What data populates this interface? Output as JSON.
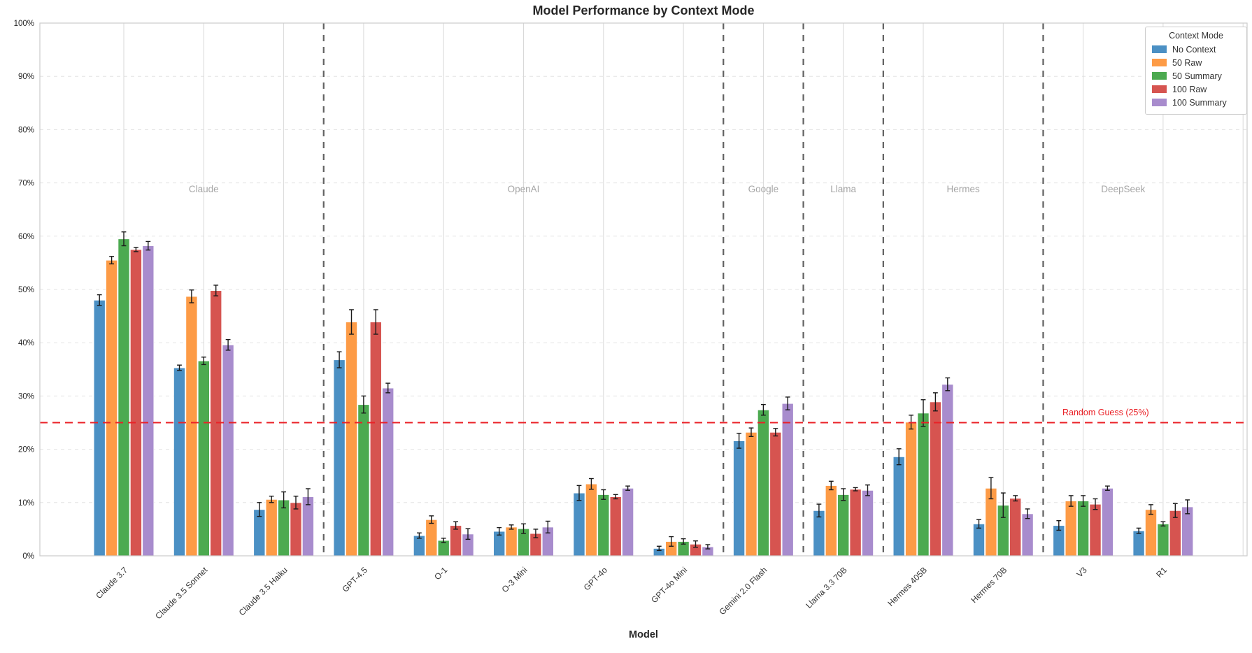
{
  "chart_data": {
    "type": "bar",
    "title": "Model Performance by Context Mode",
    "xlabel": "Model",
    "ylabel": "",
    "ylim": [
      0,
      100
    ],
    "ytick_labels": [
      "0%",
      "10%",
      "20%",
      "30%",
      "40%",
      "50%",
      "60%",
      "70%",
      "80%",
      "90%",
      "100%"
    ],
    "grid": true,
    "legend_title": "Context Mode",
    "legend_position": "top-right",
    "categories": [
      "Claude 3.7",
      "Claude 3.5 Sonnet",
      "Claude 3.5 Haiku",
      "GPT-4.5",
      "O-1",
      "O-3 Mini",
      "GPT-4o",
      "GPT-4o Mini",
      "Gemini 2.0 Flash",
      "Llama 3.3 70B",
      "Hermes 405B",
      "Hermes 70B",
      "V3",
      "R1"
    ],
    "series": [
      {
        "name": "No Context",
        "color": "#4B90C4",
        "values": [
          48.0,
          35.3,
          8.7,
          36.8,
          3.8,
          4.6,
          11.8,
          1.4,
          21.6,
          8.5,
          18.6,
          6.0,
          5.7,
          4.7
        ],
        "errors": [
          1.0,
          0.5,
          1.3,
          1.5,
          0.5,
          0.7,
          1.4,
          0.4,
          1.4,
          1.2,
          1.5,
          0.8,
          0.9,
          0.5
        ]
      },
      {
        "name": "50 Raw",
        "color": "#FD9B46",
        "values": [
          55.5,
          48.7,
          10.6,
          43.9,
          6.8,
          5.4,
          13.5,
          2.7,
          23.2,
          13.2,
          25.1,
          12.7,
          10.3,
          8.7
        ],
        "errors": [
          0.7,
          1.2,
          0.6,
          2.3,
          0.7,
          0.4,
          1.0,
          0.9,
          0.8,
          0.8,
          1.3,
          2.0,
          1.0,
          0.9
        ]
      },
      {
        "name": "50 Summary",
        "color": "#4CAA50",
        "values": [
          59.5,
          36.6,
          10.5,
          28.4,
          2.9,
          5.1,
          11.5,
          2.7,
          27.4,
          11.5,
          26.8,
          9.5,
          10.3,
          6.0
        ],
        "errors": [
          1.3,
          0.7,
          1.5,
          1.6,
          0.4,
          0.9,
          0.9,
          0.5,
          1.0,
          1.1,
          2.5,
          2.3,
          1.0,
          0.4
        ]
      },
      {
        "name": "100 Raw",
        "color": "#D65450",
        "values": [
          57.5,
          49.8,
          10.0,
          43.9,
          5.7,
          4.2,
          11.1,
          2.2,
          23.2,
          12.5,
          28.9,
          10.8,
          9.7,
          8.5
        ],
        "errors": [
          0.4,
          1.0,
          1.2,
          2.3,
          0.7,
          0.8,
          0.4,
          0.6,
          0.7,
          0.3,
          1.7,
          0.5,
          1.0,
          1.3
        ]
      },
      {
        "name": "100 Summary",
        "color": "#A88CCD",
        "values": [
          58.2,
          39.6,
          11.1,
          31.5,
          4.1,
          5.4,
          12.7,
          1.7,
          28.6,
          12.3,
          32.2,
          7.9,
          12.7,
          9.2
        ],
        "errors": [
          0.8,
          1.0,
          1.5,
          0.9,
          1.0,
          1.1,
          0.4,
          0.4,
          1.2,
          1.0,
          1.2,
          0.9,
          0.4,
          1.3
        ]
      }
    ],
    "vendor_groups": [
      {
        "label": "Claude",
        "from": 0,
        "to": 2
      },
      {
        "label": "OpenAI",
        "from": 3,
        "to": 7
      },
      {
        "label": "Google",
        "from": 8,
        "to": 8
      },
      {
        "label": "Llama",
        "from": 9,
        "to": 9
      },
      {
        "label": "Hermes",
        "from": 10,
        "to": 11
      },
      {
        "label": "DeepSeek",
        "from": 12,
        "to": 13
      }
    ],
    "separators_after": [
      2,
      7,
      8,
      9,
      11
    ],
    "reference_line": {
      "value": 25,
      "label": "Random Guess (25%)",
      "color": "#EA2127"
    }
  }
}
